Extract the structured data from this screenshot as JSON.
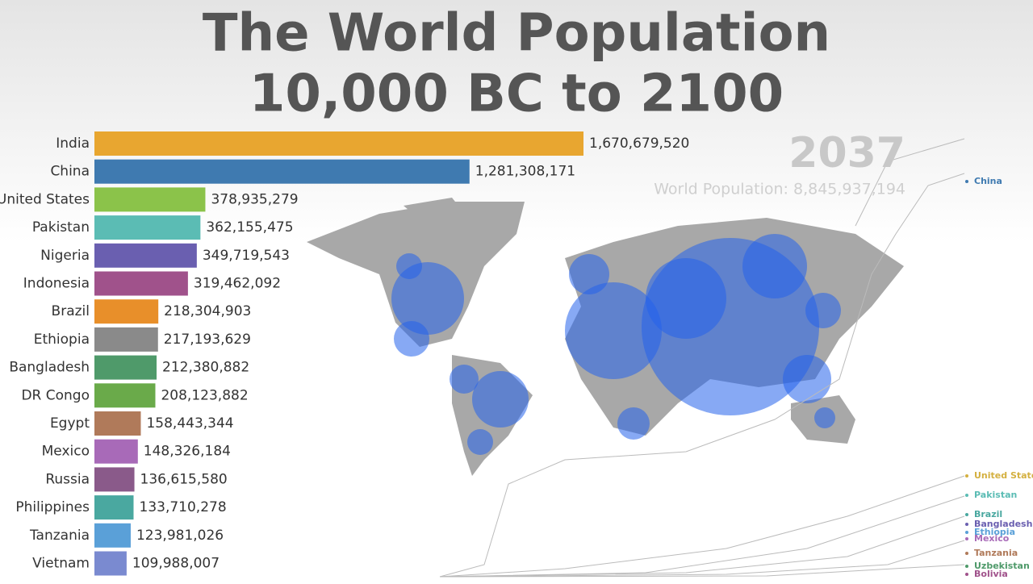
{
  "chart_data": {
    "type": "bar",
    "orientation": "horizontal",
    "title": "The World Population",
    "subtitle": "10,000 BC to 2100",
    "year": "2037",
    "world_population_label": "World Population: 8,845,937,194",
    "categories": [
      "India",
      "China",
      "United States",
      "Pakistan",
      "Nigeria",
      "Indonesia",
      "Brazil",
      "Ethiopia",
      "Bangladesh",
      "DR Congo",
      "Egypt",
      "Mexico",
      "Russia",
      "Philippines",
      "Tanzania",
      "Vietnam"
    ],
    "values": [
      1670679520,
      1281308171,
      378935279,
      362155475,
      349719543,
      319462092,
      218304903,
      217193629,
      212380882,
      208123882,
      158443344,
      148326184,
      136615580,
      133710278,
      123981026,
      109988007
    ],
    "value_labels": [
      "1,670,679,520",
      "1,281,308,171",
      "378,935,279",
      "362,155,475",
      "349,719,543",
      "319,462,092",
      "218,304,903",
      "217,193,629",
      "212,380,882",
      "208,123,882",
      "158,443,344",
      "148,326,184",
      "136,615,580",
      "133,710,278",
      "123,981,026",
      "109,988,007"
    ],
    "colors": [
      "#e8a630",
      "#3f7ab0",
      "#8bc34a",
      "#5bbcb4",
      "#6a5fb0",
      "#a0528b",
      "#e88f2a",
      "#8a8a8a",
      "#4f9a6a",
      "#6aaa4a",
      "#b07a5a",
      "#a86ab8",
      "#8a5a8a",
      "#4aa8a0",
      "#5aa0d8",
      "#7a8ad0"
    ],
    "line_labels": [
      "China",
      "United States",
      "Pakistan",
      "Brazil",
      "Bangladesh",
      "Ethiopia",
      "Mexico",
      "Tanzania",
      "Uzbekistan",
      "Bolivia"
    ],
    "line_label_colors": [
      "#3f7ab0",
      "#d4b040",
      "#5bbcb4",
      "#4aa8a0",
      "#6a5fb0",
      "#5aa0d8",
      "#a86ab8",
      "#b07a5a",
      "#4f9a6a",
      "#a0528b"
    ]
  }
}
